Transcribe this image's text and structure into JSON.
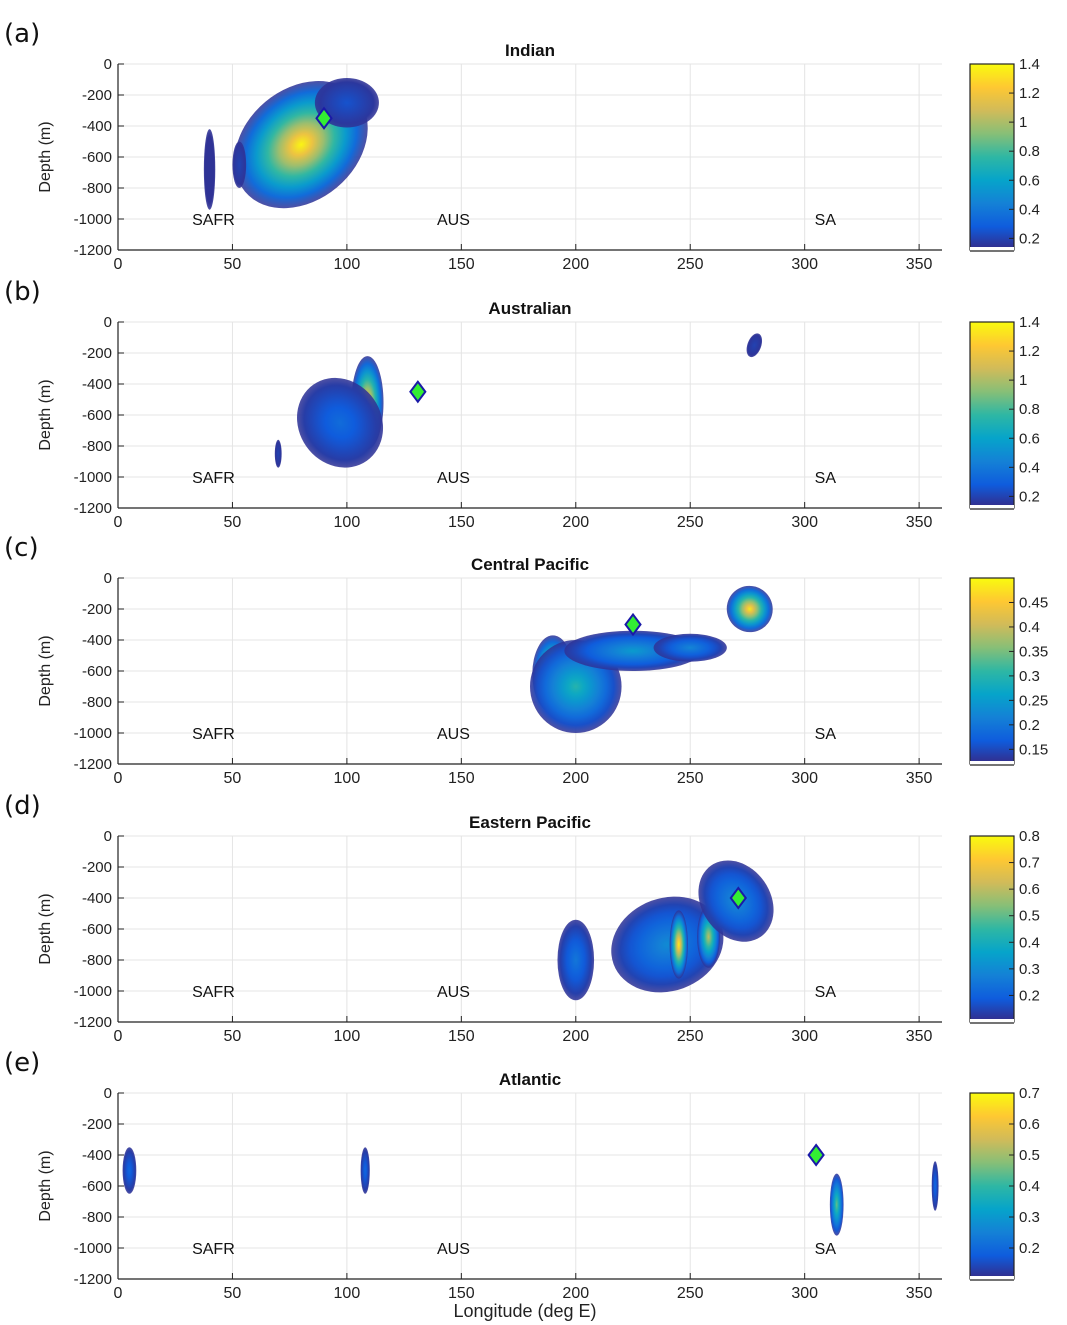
{
  "figure": {
    "x_axis_label": "Longitude (deg E)",
    "y_axis_label": "Depth (m)",
    "landmass_labels": [
      "SAFR",
      "AUS",
      "SA"
    ],
    "marker_color": "#33ee33",
    "marker_edge_color": "#1a1aa8",
    "colormap": [
      "#352a87",
      "#0f5cdd",
      "#1481d6",
      "#06a4ca",
      "#2eb7a4",
      "#87bf77",
      "#d1bb59",
      "#fec832",
      "#f9fb0e"
    ]
  },
  "chart_data": [
    {
      "panel_label": "(a)",
      "type": "heatmap",
      "title": "Indian",
      "xlabel": "",
      "ylabel": "Depth (m)",
      "xlim": [
        0,
        360
      ],
      "ylim": [
        -1200,
        0
      ],
      "x_ticks": [
        0,
        50,
        100,
        150,
        200,
        250,
        300,
        350
      ],
      "y_ticks": [
        0,
        -200,
        -400,
        -600,
        -800,
        -1000,
        -1200
      ],
      "grid": true,
      "colorbar": {
        "range": [
          0.12,
          1.4
        ],
        "ticks": [
          "0.2",
          "0.4",
          "0.6",
          "0.8",
          "1",
          "1.2",
          "1.4"
        ]
      },
      "marker": {
        "lon": 90,
        "depth": -350
      },
      "annotations": [
        {
          "text": "SAFR",
          "lon": 28,
          "depth": -1000
        },
        {
          "text": "AUS",
          "lon": 135,
          "depth": -1000
        },
        {
          "text": "SA",
          "lon": 300,
          "depth": -1000
        }
      ],
      "blobs": [
        {
          "lon": 80,
          "depth": -520,
          "value": 1.38,
          "rx": 32,
          "ry": 360,
          "tilt": -40
        },
        {
          "lon": 100,
          "depth": -250,
          "value": 0.25,
          "rx": 14,
          "ry": 160,
          "tilt": 0
        },
        {
          "lon": 40,
          "depth": -680,
          "value": 0.15,
          "rx": 2.5,
          "ry": 260,
          "tilt": 0
        },
        {
          "lon": 53,
          "depth": -650,
          "value": 0.2,
          "rx": 3,
          "ry": 150,
          "tilt": 0
        }
      ]
    },
    {
      "panel_label": "(b)",
      "type": "heatmap",
      "title": "Australian",
      "xlabel": "",
      "ylabel": "Depth (m)",
      "xlim": [
        0,
        360
      ],
      "ylim": [
        -1200,
        0
      ],
      "x_ticks": [
        0,
        50,
        100,
        150,
        200,
        250,
        300,
        350
      ],
      "y_ticks": [
        0,
        -200,
        -400,
        -600,
        -800,
        -1000,
        -1200
      ],
      "grid": true,
      "colorbar": {
        "range": [
          0.12,
          1.4
        ],
        "ticks": [
          "0.2",
          "0.4",
          "0.6",
          "0.8",
          "1",
          "1.2",
          "1.4"
        ]
      },
      "marker": {
        "lon": 131,
        "depth": -450
      },
      "annotations": [
        {
          "text": "SAFR",
          "lon": 28,
          "depth": -1000
        },
        {
          "text": "AUS",
          "lon": 135,
          "depth": -1000
        },
        {
          "text": "SA",
          "lon": 300,
          "depth": -1000
        }
      ],
      "blobs": [
        {
          "lon": 109,
          "depth": -520,
          "value": 1.3,
          "rx": 7,
          "ry": 300,
          "tilt": 0
        },
        {
          "lon": 97,
          "depth": -650,
          "value": 0.35,
          "rx": 18,
          "ry": 300,
          "tilt": -35
        },
        {
          "lon": 70,
          "depth": -850,
          "value": 0.2,
          "rx": 1.5,
          "ry": 90,
          "tilt": 0
        },
        {
          "lon": 278,
          "depth": -150,
          "value": 0.2,
          "rx": 3,
          "ry": 80,
          "tilt": 20
        }
      ]
    },
    {
      "panel_label": "(c)",
      "type": "heatmap",
      "title": "Central Pacific",
      "xlabel": "",
      "ylabel": "Depth (m)",
      "xlim": [
        0,
        360
      ],
      "ylim": [
        -1200,
        0
      ],
      "x_ticks": [
        0,
        50,
        100,
        150,
        200,
        250,
        300,
        350
      ],
      "y_ticks": [
        0,
        -200,
        -400,
        -600,
        -800,
        -1000,
        -1200
      ],
      "grid": true,
      "colorbar": {
        "range": [
          0.12,
          0.5
        ],
        "ticks": [
          "0.15",
          "0.2",
          "0.25",
          "0.3",
          "0.35",
          "0.4",
          "0.45"
        ]
      },
      "marker": {
        "lon": 225,
        "depth": -300
      },
      "annotations": [
        {
          "text": "SAFR",
          "lon": 28,
          "depth": -1000
        },
        {
          "text": "AUS",
          "lon": 135,
          "depth": -1000
        },
        {
          "text": "SA",
          "lon": 300,
          "depth": -1000
        }
      ],
      "blobs": [
        {
          "lon": 190,
          "depth": -620,
          "value": 0.47,
          "rx": 9,
          "ry": 250,
          "tilt": 0
        },
        {
          "lon": 200,
          "depth": -700,
          "value": 0.3,
          "rx": 20,
          "ry": 300,
          "tilt": 0
        },
        {
          "lon": 225,
          "depth": -470,
          "value": 0.25,
          "rx": 30,
          "ry": 130,
          "tilt": 0
        },
        {
          "lon": 250,
          "depth": -450,
          "value": 0.22,
          "rx": 16,
          "ry": 90,
          "tilt": 0
        },
        {
          "lon": 276,
          "depth": -200,
          "value": 0.48,
          "rx": 10,
          "ry": 150,
          "tilt": -30
        }
      ]
    },
    {
      "panel_label": "(d)",
      "type": "heatmap",
      "title": "Eastern Pacific",
      "xlabel": "",
      "ylabel": "Depth (m)",
      "xlim": [
        0,
        360
      ],
      "ylim": [
        -1200,
        0
      ],
      "x_ticks": [
        0,
        50,
        100,
        150,
        200,
        250,
        300,
        350
      ],
      "y_ticks": [
        0,
        -200,
        -400,
        -600,
        -800,
        -1000,
        -1200
      ],
      "grid": true,
      "colorbar": {
        "range": [
          0.1,
          0.8
        ],
        "ticks": [
          "0.2",
          "0.3",
          "0.4",
          "0.5",
          "0.6",
          "0.7",
          "0.8"
        ]
      },
      "marker": {
        "lon": 271,
        "depth": -400
      },
      "annotations": [
        {
          "text": "SAFR",
          "lon": 28,
          "depth": -1000
        },
        {
          "text": "AUS",
          "lon": 135,
          "depth": -1000
        },
        {
          "text": "SA",
          "lon": 300,
          "depth": -1000
        }
      ],
      "blobs": [
        {
          "lon": 200,
          "depth": -800,
          "value": 0.25,
          "rx": 8,
          "ry": 260,
          "tilt": 0
        },
        {
          "lon": 240,
          "depth": -700,
          "value": 0.3,
          "rx": 25,
          "ry": 300,
          "tilt": -20
        },
        {
          "lon": 245,
          "depth": -700,
          "value": 0.78,
          "rx": 4,
          "ry": 220,
          "tilt": 0
        },
        {
          "lon": 258,
          "depth": -650,
          "value": 0.6,
          "rx": 5,
          "ry": 200,
          "tilt": 0
        },
        {
          "lon": 272,
          "depth": -430,
          "value": 0.72,
          "rx": 9,
          "ry": 200,
          "tilt": 0
        },
        {
          "lon": 270,
          "depth": -420,
          "value": 0.3,
          "rx": 15,
          "ry": 280,
          "tilt": -35
        }
      ]
    },
    {
      "panel_label": "(e)",
      "type": "heatmap",
      "title": "Atlantic",
      "xlabel": "Longitude (deg E)",
      "ylabel": "Depth (m)",
      "xlim": [
        0,
        360
      ],
      "ylim": [
        -1200,
        0
      ],
      "x_ticks": [
        0,
        50,
        100,
        150,
        200,
        250,
        300,
        350
      ],
      "y_ticks": [
        0,
        -200,
        -400,
        -600,
        -800,
        -1000,
        -1200
      ],
      "grid": true,
      "colorbar": {
        "range": [
          0.1,
          0.7
        ],
        "ticks": [
          "0.2",
          "0.3",
          "0.4",
          "0.5",
          "0.6",
          "0.7"
        ]
      },
      "marker": {
        "lon": 305,
        "depth": -400
      },
      "annotations": [
        {
          "text": "SAFR",
          "lon": 28,
          "depth": -1000
        },
        {
          "text": "AUS",
          "lon": 135,
          "depth": -1000
        },
        {
          "text": "SA",
          "lon": 300,
          "depth": -1000
        }
      ],
      "blobs": [
        {
          "lon": 5,
          "depth": -500,
          "value": 0.2,
          "rx": 3,
          "ry": 150,
          "tilt": 0
        },
        {
          "lon": 108,
          "depth": -500,
          "value": 0.2,
          "rx": 2,
          "ry": 150,
          "tilt": 0
        },
        {
          "lon": 314,
          "depth": -720,
          "value": 0.45,
          "rx": 3,
          "ry": 200,
          "tilt": 0
        },
        {
          "lon": 357,
          "depth": -600,
          "value": 0.2,
          "rx": 1.5,
          "ry": 160,
          "tilt": 0
        }
      ]
    }
  ]
}
